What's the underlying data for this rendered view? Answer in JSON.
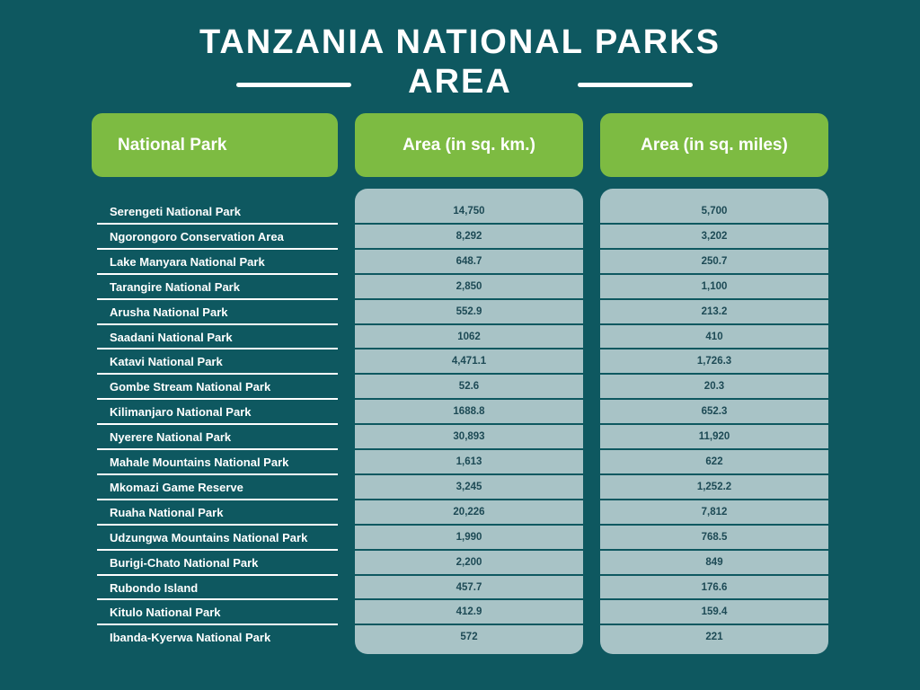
{
  "header": {
    "title": [
      "TANZANIA NATIONAL PARKS",
      "AREA"
    ]
  },
  "table": {
    "columns": [
      "National Park",
      "Area (in sq. km.)",
      "Area (in sq. miles)"
    ],
    "rows": [
      [
        "Serengeti National Park",
        "14,750",
        "5,700"
      ],
      [
        "Ngorongoro Conservation Area",
        "8,292",
        "3,202"
      ],
      [
        "Lake Manyara National Park",
        "648.7",
        "250.7"
      ],
      [
        "Tarangire National Park",
        "2,850",
        "1,100"
      ],
      [
        "Arusha National Park",
        "552.9",
        "213.2"
      ],
      [
        "Saadani National Park",
        "1062",
        "410"
      ],
      [
        "Katavi National Park",
        "4,471.1",
        "1,726.3"
      ],
      [
        "Gombe Stream National Park",
        "52.6",
        "20.3"
      ],
      [
        "Kilimanjaro National Park",
        "1688.8",
        "652.3"
      ],
      [
        "Nyerere National Park",
        "30,893",
        "11,920"
      ],
      [
        "Mahale Mountains National Park",
        "1,613",
        "622"
      ],
      [
        "Mkomazi Game Reserve",
        "3,245",
        "1,252.2"
      ],
      [
        "Ruaha National Park",
        "20,226",
        "7,812"
      ],
      [
        "Udzungwa Mountains National Park",
        "1,990",
        "768.5"
      ],
      [
        "Burigi-Chato National Park",
        "2,200",
        "849"
      ],
      [
        "Rubondo Island",
        "457.7",
        "176.6"
      ],
      [
        "Kitulo National Park",
        "412.9",
        "159.4"
      ],
      [
        "Ibanda-Kyerwa National Park",
        "572",
        "221"
      ]
    ]
  }
}
